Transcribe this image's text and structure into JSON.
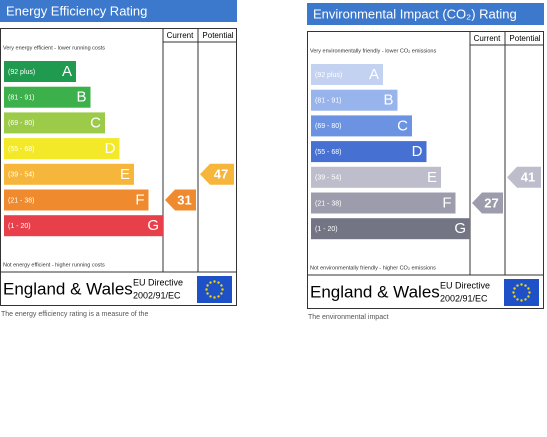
{
  "panels": [
    {
      "title": "Energy Efficiency Rating",
      "col_current": "Current",
      "col_potential": "Potential",
      "top_note": "Very energy efficient - lower running costs",
      "bands": [
        {
          "range": "(92 plus)",
          "letter": "A",
          "color": "#1f9a4e"
        },
        {
          "range": "(81 - 91)",
          "letter": "B",
          "color": "#3bb04b"
        },
        {
          "range": "(69 - 80)",
          "letter": "C",
          "color": "#9ccb4a"
        },
        {
          "range": "(55 - 68)",
          "letter": "D",
          "color": "#f3e928"
        },
        {
          "range": "(39 - 54)",
          "letter": "E",
          "color": "#f6b63c"
        },
        {
          "range": "(21 - 38)",
          "letter": "F",
          "color": "#ef8a2e"
        },
        {
          "range": "(1 - 20)",
          "letter": "G",
          "color": "#e8404a"
        }
      ],
      "bottom_note": "Not energy efficient - higher running costs",
      "current": 31,
      "potential": 47,
      "footer": "England & Wales",
      "directive": [
        "EU Directive",
        "2002/91/EC"
      ],
      "caption": "The energy efficiency rating is a measure of the"
    },
    {
      "title": "Environmental Impact (CO₂) Rating",
      "col_current": "Current",
      "col_potential": "Potential",
      "top_note": "Very environmentally friendly - lower CO₂ emissions",
      "bands": [
        {
          "range": "(92 plus)",
          "letter": "A",
          "color": "#c3d2f1"
        },
        {
          "range": "(81 - 91)",
          "letter": "B",
          "color": "#98b4ec"
        },
        {
          "range": "(69 - 80)",
          "letter": "C",
          "color": "#6b93e2"
        },
        {
          "range": "(55 - 68)",
          "letter": "D",
          "color": "#4670d2"
        },
        {
          "range": "(39 - 54)",
          "letter": "E",
          "color": "#bdbdcc"
        },
        {
          "range": "(21 - 38)",
          "letter": "F",
          "color": "#9c9cac"
        },
        {
          "range": "(1 - 20)",
          "letter": "G",
          "color": "#737484"
        }
      ],
      "bottom_note": "Not environmentally friendly - higher CO₂ emissions",
      "current": 27,
      "potential": 41,
      "footer": "England & Wales",
      "directive": [
        "EU Directive",
        "2002/91/EC"
      ],
      "caption": "The environmental impact"
    }
  ]
}
